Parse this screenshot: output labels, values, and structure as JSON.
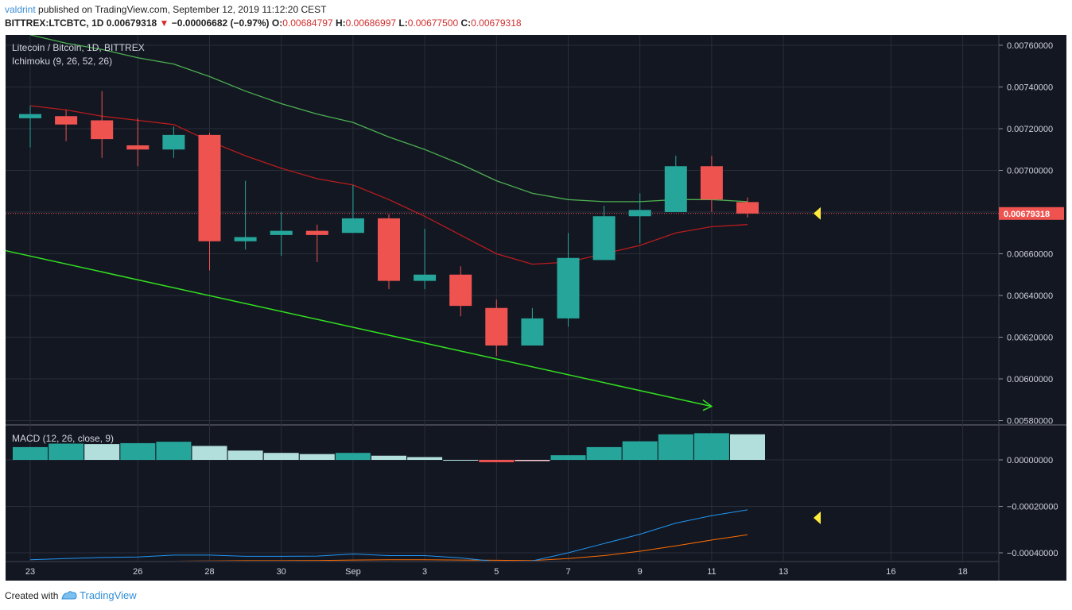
{
  "header": {
    "publisher": "valdrint",
    "published_text": " published on TradingView.com, September 12, 2019 11:12:20 CEST",
    "symbol": "BITTREX:LTCBTC, 1D",
    "last": "0.00679318",
    "change_arrow": "▼",
    "change": "−0.00006682 (−0.97%)",
    "o_label": "O:",
    "o_val": "0.00684797",
    "h_label": "H:",
    "h_val": "0.00686997",
    "l_label": "L:",
    "l_val": "0.00677500",
    "c_label": "C:",
    "c_val": "0.00679318"
  },
  "footer": {
    "created_with": "Created with",
    "brand": "TradingView"
  },
  "colors": {
    "background": "#131722",
    "grid": "#2a2e39",
    "up": "#26a69a",
    "down": "#ef5350",
    "conversion_line": "#b71c1c",
    "base_line": "#4caf50",
    "trendline": "#32e11f",
    "macd_line": "#2196f3",
    "signal_line": "#ff6d00",
    "price_tag": "#ef5350",
    "marker": "#ffeb3b"
  },
  "chart_data": [
    {
      "type": "candlestick",
      "title": "Litecoin / Bitcoin, 1D, BITTREX",
      "indicator_label": "Ichimoku (9, 26, 52, 26)",
      "x_tick_labels": [
        "23",
        "26",
        "28",
        "30",
        "Sep",
        "3",
        "5",
        "7",
        "9",
        "11",
        "13",
        "16",
        "18"
      ],
      "x_tick_days": [
        "2019-08-23",
        "2019-08-26",
        "2019-08-28",
        "2019-08-30",
        "2019-09-01",
        "2019-09-03",
        "2019-09-05",
        "2019-09-07",
        "2019-09-09",
        "2019-09-11",
        "2019-09-13",
        "2019-09-16",
        "2019-09-18"
      ],
      "y_tick_labels": [
        "0.00760000",
        "0.00740000",
        "0.00720000",
        "0.00700000",
        "0.00680000",
        "0.00660000",
        "0.00640000",
        "0.00620000",
        "0.00600000",
        "0.00580000"
      ],
      "ylim": [
        0.0058,
        0.0076
      ],
      "current_price_label": "0.00679318",
      "current_price": 0.00679318,
      "candles": [
        {
          "date": "2019-08-23",
          "o": 0.00725,
          "h": 0.00731,
          "l": 0.00711,
          "c": 0.00727
        },
        {
          "date": "2019-08-24",
          "o": 0.00726,
          "h": 0.00729,
          "l": 0.00714,
          "c": 0.00722
        },
        {
          "date": "2019-08-25",
          "o": 0.00724,
          "h": 0.00738,
          "l": 0.00706,
          "c": 0.00715
        },
        {
          "date": "2019-08-26",
          "o": 0.00712,
          "h": 0.00725,
          "l": 0.00702,
          "c": 0.0071
        },
        {
          "date": "2019-08-27",
          "o": 0.0071,
          "h": 0.00721,
          "l": 0.00706,
          "c": 0.00717
        },
        {
          "date": "2019-08-28",
          "o": 0.00717,
          "h": 0.00718,
          "l": 0.00652,
          "c": 0.00666
        },
        {
          "date": "2019-08-29",
          "o": 0.00666,
          "h": 0.00695,
          "l": 0.00662,
          "c": 0.00668
        },
        {
          "date": "2019-08-30",
          "o": 0.00669,
          "h": 0.0068,
          "l": 0.00659,
          "c": 0.00671
        },
        {
          "date": "2019-08-31",
          "o": 0.00671,
          "h": 0.00674,
          "l": 0.00656,
          "c": 0.00669
        },
        {
          "date": "2019-09-01",
          "o": 0.0067,
          "h": 0.00693,
          "l": 0.0067,
          "c": 0.00677
        },
        {
          "date": "2019-09-02",
          "o": 0.00677,
          "h": 0.00679,
          "l": 0.00643,
          "c": 0.00647
        },
        {
          "date": "2019-09-03",
          "o": 0.00647,
          "h": 0.00672,
          "l": 0.00643,
          "c": 0.0065
        },
        {
          "date": "2019-09-04",
          "o": 0.0065,
          "h": 0.00654,
          "l": 0.0063,
          "c": 0.00635
        },
        {
          "date": "2019-09-05",
          "o": 0.00634,
          "h": 0.00638,
          "l": 0.00611,
          "c": 0.00616
        },
        {
          "date": "2019-09-06",
          "o": 0.00616,
          "h": 0.00634,
          "l": 0.00616,
          "c": 0.00629
        },
        {
          "date": "2019-09-07",
          "o": 0.00629,
          "h": 0.0067,
          "l": 0.00625,
          "c": 0.00658
        },
        {
          "date": "2019-09-08",
          "o": 0.00657,
          "h": 0.00683,
          "l": 0.00657,
          "c": 0.00678
        },
        {
          "date": "2019-09-09",
          "o": 0.00678,
          "h": 0.00689,
          "l": 0.00665,
          "c": 0.00681
        },
        {
          "date": "2019-09-10",
          "o": 0.0068,
          "h": 0.00707,
          "l": 0.0068,
          "c": 0.00702
        },
        {
          "date": "2019-09-11",
          "o": 0.00702,
          "h": 0.00707,
          "l": 0.0068,
          "c": 0.00686
        },
        {
          "date": "2019-09-12",
          "o": 0.00684797,
          "h": 0.00686997,
          "l": 0.006775,
          "c": 0.00679318
        }
      ],
      "base_line": [
        0.00765,
        0.00761,
        0.00758,
        0.00754,
        0.00751,
        0.00745,
        0.00738,
        0.00732,
        0.00727,
        0.00723,
        0.00716,
        0.0071,
        0.00703,
        0.00695,
        0.00689,
        0.00686,
        0.00685,
        0.00685,
        0.00686,
        0.00686,
        0.00685
      ],
      "conversion_line": [
        0.00731,
        0.00729,
        0.00726,
        0.00724,
        0.00722,
        0.00714,
        0.00707,
        0.00701,
        0.00696,
        0.00693,
        0.00686,
        0.00678,
        0.00669,
        0.0066,
        0.00655,
        0.00656,
        0.0066,
        0.00664,
        0.0067,
        0.00673,
        0.00674
      ],
      "trendline": {
        "start_date": "2019-08-22",
        "start_price": 0.006615,
        "end_date": "2019-09-11",
        "end_price": 0.005868
      }
    },
    {
      "type": "bar",
      "title": "MACD (12, 26, close, 9)",
      "y_tick_labels": [
        "0.00000000",
        "−0.00020000",
        "−0.00040000"
      ],
      "ylim": [
        -0.00043,
        0.0001
      ],
      "histogram": [
        5.5e-05,
        7e-05,
        6.8e-05,
        7.2e-05,
        7.8e-05,
        6e-05,
        4e-05,
        3e-05,
        2.5e-05,
        3e-05,
        1.8e-05,
        1.2e-05,
        0.0,
        -1e-05,
        -5e-06,
        2e-05,
        5.5e-05,
        8e-05,
        0.00011,
        0.000115,
        0.00011
      ],
      "macd": [
        -0.00043,
        -0.000425,
        -0.00042,
        -0.000418,
        -0.00041,
        -0.00041,
        -0.000415,
        -0.000415,
        -0.000414,
        -0.000405,
        -0.000412,
        -0.000412,
        -0.000422,
        -0.000438,
        -0.000435,
        -0.0004,
        -0.00036,
        -0.00032,
        -0.000272,
        -0.00024,
        -0.000215
      ],
      "signal": [
        -0.00044,
        -0.00044,
        -0.000438,
        -0.000437,
        -0.000436,
        -0.000435,
        -0.000434,
        -0.000434,
        -0.000433,
        -0.000431,
        -0.00043,
        -0.00043,
        -0.000431,
        -0.000432,
        -0.000433,
        -0.000425,
        -0.000412,
        -0.000393,
        -0.00037,
        -0.000345,
        -0.000322
      ]
    }
  ]
}
